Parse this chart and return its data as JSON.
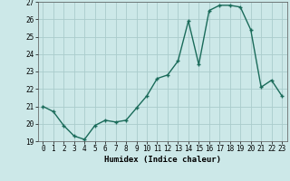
{
  "x": [
    0,
    1,
    2,
    3,
    4,
    5,
    6,
    7,
    8,
    9,
    10,
    11,
    12,
    13,
    14,
    15,
    16,
    17,
    18,
    19,
    20,
    21,
    22,
    23
  ],
  "y": [
    21.0,
    20.7,
    19.9,
    19.3,
    19.1,
    19.9,
    20.2,
    20.1,
    20.2,
    20.9,
    21.6,
    22.6,
    22.8,
    23.6,
    25.9,
    23.4,
    26.5,
    26.8,
    26.8,
    26.7,
    25.4,
    22.1,
    22.5,
    21.6
  ],
  "line_color": "#1a6b5a",
  "marker": "+",
  "markersize": 3.5,
  "linewidth": 1.0,
  "xlabel": "Humidex (Indice chaleur)",
  "xlim": [
    -0.5,
    23.5
  ],
  "ylim": [
    19.0,
    27.0
  ],
  "yticks": [
    19,
    20,
    21,
    22,
    23,
    24,
    25,
    26,
    27
  ],
  "xticks": [
    0,
    1,
    2,
    3,
    4,
    5,
    6,
    7,
    8,
    9,
    10,
    11,
    12,
    13,
    14,
    15,
    16,
    17,
    18,
    19,
    20,
    21,
    22,
    23
  ],
  "bg_color": "#cce8e8",
  "grid_color": "#aacccc",
  "xlabel_fontsize": 6.5,
  "tick_fontsize": 5.5
}
